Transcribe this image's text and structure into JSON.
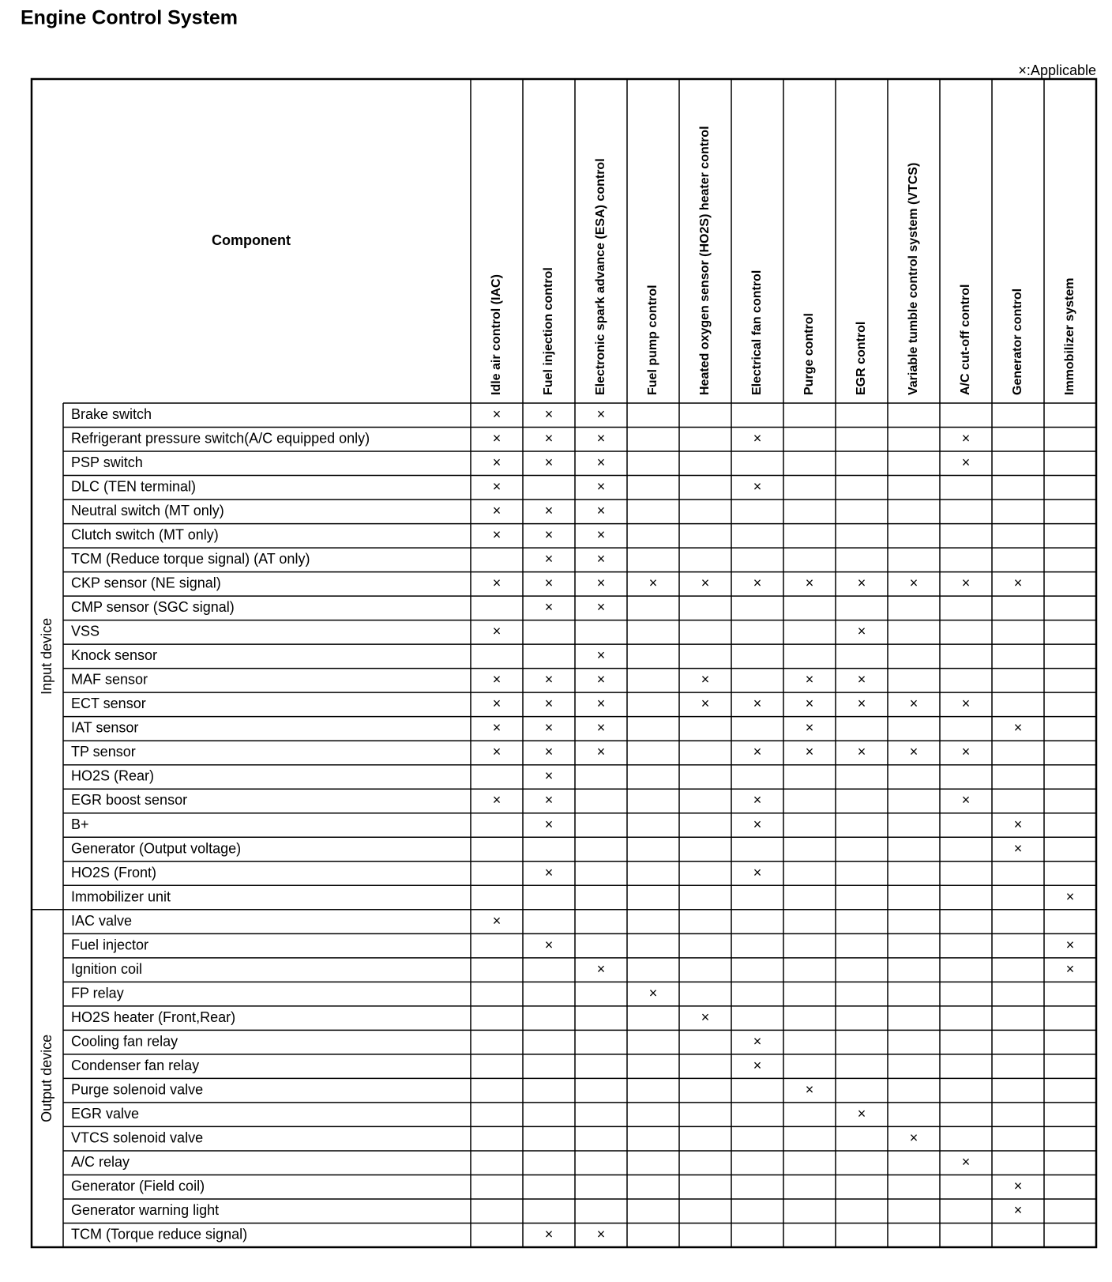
{
  "title": "Engine Control System",
  "legend": "×:Applicable",
  "header": "Component",
  "columns": [
    "Idle air control (IAC)",
    "Fuel injection control",
    "Electronic spark advance (ESA) control",
    "Fuel pump control",
    "Heated oxygen sensor (HO2S) heater control",
    "Electrical fan control",
    "Purge control",
    "EGR control",
    "Variable tumble control system (VTCS)",
    "A/C cut-off control",
    "Generator control",
    "Immobilizer system"
  ],
  "groups": [
    {
      "name": "Input device",
      "rows": [
        {
          "label": "Brake switch",
          "cells": [
            "×",
            "×",
            "×",
            null,
            null,
            null,
            null,
            null,
            null,
            null,
            null,
            null
          ]
        },
        {
          "label": "Refrigerant pressure switch(A/C equipped only)",
          "cells": [
            "×",
            "×",
            "×",
            null,
            null,
            "×",
            null,
            null,
            null,
            "×",
            null,
            null
          ]
        },
        {
          "label": "PSP switch",
          "cells": [
            "×",
            "×",
            "×",
            null,
            null,
            null,
            null,
            null,
            null,
            "×",
            null,
            null
          ]
        },
        {
          "label": "DLC (TEN terminal)",
          "cells": [
            "×",
            null,
            "×",
            null,
            null,
            "×",
            null,
            null,
            null,
            null,
            null,
            null
          ]
        },
        {
          "label": "Neutral switch (MT only)",
          "cells": [
            "×",
            "×",
            "×",
            null,
            null,
            null,
            null,
            null,
            null,
            null,
            null,
            null
          ]
        },
        {
          "label": "Clutch switch (MT only)",
          "cells": [
            "×",
            "×",
            "×",
            null,
            null,
            null,
            null,
            null,
            null,
            null,
            null,
            null
          ]
        },
        {
          "label": "TCM (Reduce torque signal) (AT only)",
          "cells": [
            null,
            "×",
            "×",
            null,
            null,
            null,
            null,
            null,
            null,
            null,
            null,
            null
          ]
        },
        {
          "label": "CKP sensor (NE signal)",
          "cells": [
            "×",
            "×",
            "×",
            "×",
            "×",
            "×",
            "×",
            "×",
            "×",
            "×",
            "×",
            null
          ]
        },
        {
          "label": "CMP sensor (SGC signal)",
          "cells": [
            null,
            "×",
            "×",
            null,
            null,
            null,
            null,
            null,
            null,
            null,
            null,
            null
          ]
        },
        {
          "label": "VSS",
          "cells": [
            "×",
            null,
            null,
            null,
            null,
            null,
            null,
            "×",
            null,
            null,
            null,
            null
          ]
        },
        {
          "label": "Knock sensor",
          "cells": [
            null,
            null,
            "×",
            null,
            null,
            null,
            null,
            null,
            null,
            null,
            null,
            null
          ]
        },
        {
          "label": "MAF sensor",
          "cells": [
            "×",
            "×",
            "×",
            null,
            "×",
            null,
            "×",
            "×",
            null,
            null,
            null,
            null
          ]
        },
        {
          "label": "ECT sensor",
          "cells": [
            "×",
            "×",
            "×",
            null,
            "×",
            "×",
            "×",
            "×",
            "×",
            "×",
            null,
            null
          ]
        },
        {
          "label": "IAT sensor",
          "cells": [
            "×",
            "×",
            "×",
            null,
            null,
            null,
            "×",
            null,
            null,
            null,
            "×",
            null
          ]
        },
        {
          "label": "TP sensor",
          "cells": [
            "×",
            "×",
            "×",
            null,
            null,
            "×",
            "×",
            "×",
            "×",
            "×",
            null,
            null
          ]
        },
        {
          "label": "HO2S (Rear)",
          "cells": [
            null,
            "×",
            null,
            null,
            null,
            null,
            null,
            null,
            null,
            null,
            null,
            null
          ]
        },
        {
          "label": "EGR boost sensor",
          "cells": [
            "×",
            "×",
            null,
            null,
            null,
            "×",
            null,
            null,
            null,
            "×",
            null,
            null
          ]
        },
        {
          "label": "B+",
          "cells": [
            null,
            "×",
            null,
            null,
            null,
            "×",
            null,
            null,
            null,
            null,
            "×",
            null
          ]
        },
        {
          "label": "Generator (Output voltage)",
          "cells": [
            null,
            null,
            null,
            null,
            null,
            null,
            null,
            null,
            null,
            null,
            "×",
            null
          ]
        },
        {
          "label": "HO2S (Front)",
          "cells": [
            null,
            "×",
            null,
            null,
            null,
            "×",
            null,
            null,
            null,
            null,
            null,
            null
          ]
        },
        {
          "label": "Immobilizer unit",
          "cells": [
            null,
            null,
            null,
            null,
            null,
            null,
            null,
            null,
            null,
            null,
            null,
            "×"
          ]
        }
      ]
    },
    {
      "name": "Output device",
      "rows": [
        {
          "label": "IAC valve",
          "cells": [
            "×",
            null,
            null,
            null,
            null,
            null,
            null,
            null,
            null,
            null,
            null,
            null
          ]
        },
        {
          "label": "Fuel injector",
          "cells": [
            null,
            "×",
            null,
            null,
            null,
            null,
            null,
            null,
            null,
            null,
            null,
            "×"
          ]
        },
        {
          "label": "Ignition coil",
          "cells": [
            null,
            null,
            "×",
            null,
            null,
            null,
            null,
            null,
            null,
            null,
            null,
            "×"
          ]
        },
        {
          "label": "FP relay",
          "cells": [
            null,
            null,
            null,
            "×",
            null,
            null,
            null,
            null,
            null,
            null,
            null,
            null
          ]
        },
        {
          "label": "HO2S heater (Front,Rear)",
          "cells": [
            null,
            null,
            null,
            null,
            "×",
            null,
            null,
            null,
            null,
            null,
            null,
            null
          ]
        },
        {
          "label": "Cooling fan relay",
          "cells": [
            null,
            null,
            null,
            null,
            null,
            "×",
            null,
            null,
            null,
            null,
            null,
            null
          ]
        },
        {
          "label": "Condenser fan relay",
          "cells": [
            null,
            null,
            null,
            null,
            null,
            "×",
            null,
            null,
            null,
            null,
            null,
            null
          ]
        },
        {
          "label": "Purge solenoid valve",
          "cells": [
            null,
            null,
            null,
            null,
            null,
            null,
            "×",
            null,
            null,
            null,
            null,
            null
          ]
        },
        {
          "label": "EGR valve",
          "cells": [
            null,
            null,
            null,
            null,
            null,
            null,
            null,
            "×",
            null,
            null,
            null,
            null
          ]
        },
        {
          "label": "VTCS solenoid valve",
          "cells": [
            null,
            null,
            null,
            null,
            null,
            null,
            null,
            null,
            "×",
            null,
            null,
            null
          ]
        },
        {
          "label": "A/C relay",
          "cells": [
            null,
            null,
            null,
            null,
            null,
            null,
            null,
            null,
            null,
            "×",
            null,
            null
          ]
        },
        {
          "label": "Generator (Field coil)",
          "cells": [
            null,
            null,
            null,
            null,
            null,
            null,
            null,
            null,
            null,
            null,
            "×",
            null
          ]
        },
        {
          "label": "Generator warning light",
          "cells": [
            null,
            null,
            null,
            null,
            null,
            null,
            null,
            null,
            null,
            null,
            "×",
            null
          ]
        },
        {
          "label": "TCM (Torque reduce signal)",
          "cells": [
            null,
            "×",
            "×",
            null,
            null,
            null,
            null,
            null,
            null,
            null,
            null,
            null
          ]
        }
      ]
    }
  ]
}
